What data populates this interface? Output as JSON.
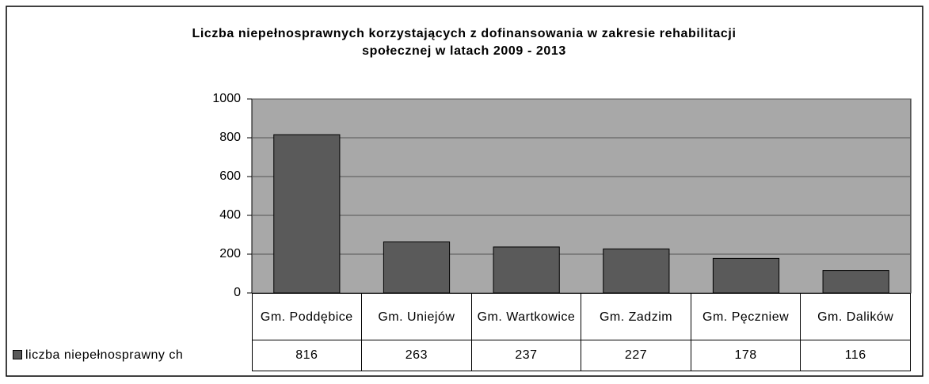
{
  "chart_data": {
    "type": "bar",
    "title": "Liczba niepełnosprawnych korzystających z dofinansowania w zakresie rehabilitacji społecznej w latach 2009 - 2013",
    "categories": [
      "Gm. Poddębice",
      "Gm. Uniejów",
      "Gm. Wartkowice",
      "Gm. Zadzim",
      "Gm. Pęczniew",
      "Gm. Dalików"
    ],
    "series": [
      {
        "name": "liczba niepełnosprawny ch",
        "color": "#5a5a5a",
        "values": [
          816,
          263,
          237,
          227,
          178,
          116
        ]
      }
    ],
    "ylim": [
      0,
      1000
    ],
    "yticks": [
      0,
      200,
      400,
      600,
      800,
      1000
    ],
    "grid": true,
    "plot_background": "#a8a8a8"
  }
}
